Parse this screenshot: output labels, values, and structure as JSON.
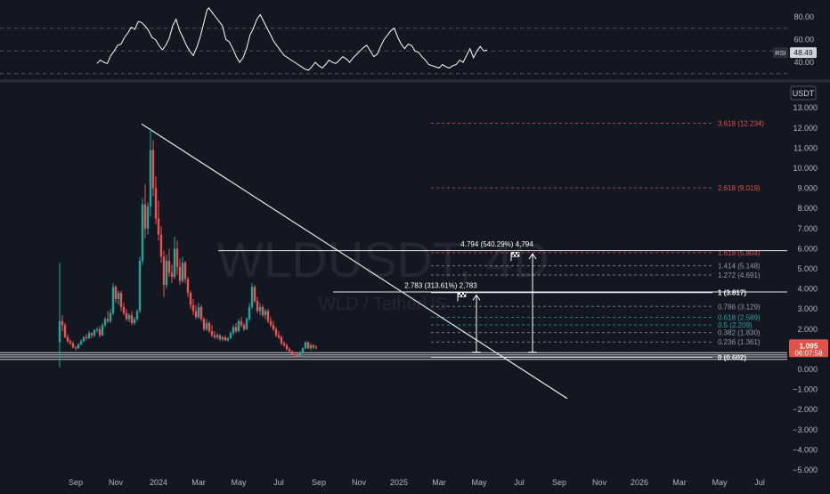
{
  "watermark": {
    "symbol": "WLDUSDT, 4D",
    "subtitle": "WLD / TetherUS"
  },
  "rsi": {
    "label": "RSI",
    "value": "48.49",
    "ticks": [
      {
        "v": 80,
        "label": "80.00"
      },
      {
        "v": 60,
        "label": "60.00"
      },
      {
        "v": 40,
        "label": "40.00"
      }
    ],
    "bands": [
      70,
      50,
      30
    ],
    "series": [
      [
        1,
        39
      ],
      [
        3,
        42
      ],
      [
        5,
        40
      ],
      [
        7,
        39
      ],
      [
        9,
        46
      ],
      [
        11,
        50
      ],
      [
        13,
        55
      ],
      [
        15,
        56
      ],
      [
        17,
        62
      ],
      [
        19,
        66
      ],
      [
        21,
        71
      ],
      [
        23,
        69
      ],
      [
        25,
        76
      ],
      [
        27,
        75
      ],
      [
        29,
        72
      ],
      [
        31,
        68
      ],
      [
        33,
        62
      ],
      [
        35,
        60
      ],
      [
        37,
        55
      ],
      [
        39,
        51
      ],
      [
        41,
        55
      ],
      [
        43,
        61
      ],
      [
        45,
        72
      ],
      [
        47,
        78
      ],
      [
        49,
        68
      ],
      [
        51,
        62
      ],
      [
        53,
        55
      ],
      [
        55,
        50
      ],
      [
        57,
        46
      ],
      [
        59,
        53
      ],
      [
        61,
        62
      ],
      [
        63,
        74
      ],
      [
        65,
        86
      ],
      [
        66,
        88
      ],
      [
        68,
        84
      ],
      [
        70,
        80
      ],
      [
        72,
        76
      ],
      [
        74,
        72
      ],
      [
        76,
        60
      ],
      [
        78,
        58
      ],
      [
        80,
        52
      ],
      [
        82,
        45
      ],
      [
        84,
        40
      ],
      [
        86,
        44
      ],
      [
        88,
        52
      ],
      [
        90,
        64
      ],
      [
        92,
        70
      ],
      [
        94,
        78
      ],
      [
        96,
        82
      ],
      [
        98,
        76
      ],
      [
        100,
        70
      ],
      [
        102,
        64
      ],
      [
        104,
        58
      ],
      [
        106,
        54
      ],
      [
        108,
        50
      ],
      [
        110,
        46
      ],
      [
        112,
        44
      ],
      [
        114,
        42
      ],
      [
        116,
        40
      ],
      [
        118,
        38
      ],
      [
        120,
        36
      ],
      [
        122,
        34
      ],
      [
        124,
        33
      ],
      [
        126,
        36
      ],
      [
        128,
        40
      ],
      [
        130,
        37
      ],
      [
        132,
        35
      ],
      [
        134,
        38
      ],
      [
        136,
        42
      ],
      [
        138,
        40
      ],
      [
        140,
        39
      ],
      [
        142,
        42
      ],
      [
        144,
        45
      ],
      [
        146,
        43
      ],
      [
        148,
        40
      ],
      [
        150,
        44
      ],
      [
        152,
        47
      ],
      [
        154,
        50
      ],
      [
        156,
        53
      ],
      [
        158,
        55
      ],
      [
        160,
        50
      ],
      [
        162,
        45
      ],
      [
        164,
        47
      ],
      [
        166,
        54
      ],
      [
        168,
        60
      ],
      [
        170,
        64
      ],
      [
        172,
        68
      ],
      [
        174,
        70
      ],
      [
        176,
        62
      ],
      [
        178,
        56
      ],
      [
        180,
        52
      ],
      [
        182,
        56
      ],
      [
        184,
        55
      ],
      [
        186,
        50
      ],
      [
        188,
        49
      ],
      [
        190,
        45
      ],
      [
        192,
        42
      ],
      [
        194,
        38
      ],
      [
        196,
        37
      ],
      [
        198,
        36
      ],
      [
        200,
        35
      ],
      [
        202,
        38
      ],
      [
        204,
        36
      ],
      [
        206,
        35
      ],
      [
        208,
        37
      ],
      [
        210,
        38
      ],
      [
        212,
        42
      ],
      [
        214,
        40
      ],
      [
        216,
        46
      ],
      [
        218,
        52
      ],
      [
        219,
        48
      ],
      [
        220,
        44
      ],
      [
        222,
        50
      ],
      [
        224,
        54
      ],
      [
        226,
        50
      ],
      [
        228,
        51
      ]
    ]
  },
  "chart_data": {
    "type": "candlestick",
    "symbol": "WLDUSDT",
    "interval": "4D",
    "currency": "USDT",
    "ylim": [
      -5,
      13
    ],
    "y_ticks": [
      13,
      12,
      11,
      10,
      9,
      8,
      7,
      6,
      5,
      4,
      3,
      2,
      1,
      0,
      -1,
      -2,
      -3,
      -4,
      -5
    ],
    "y_tick_labels": [
      "13.000",
      "12.000",
      "11.000",
      "10.000",
      "9.000",
      "8.000",
      "7.000",
      "6.000",
      "5.000",
      "4.000",
      "3.000",
      "2.000",
      "1.000",
      "0.000",
      "−1.000",
      "−2.000",
      "−3.000",
      "−4.000",
      "−5.000"
    ],
    "x_ticks": [
      {
        "i": 6,
        "label": "Sep"
      },
      {
        "i": 21,
        "label": "Nov"
      },
      {
        "i": 37,
        "label": "2024"
      },
      {
        "i": 52,
        "label": "Mar"
      },
      {
        "i": 67,
        "label": "May"
      },
      {
        "i": 82,
        "label": "Jul"
      },
      {
        "i": 97,
        "label": "Sep"
      },
      {
        "i": 112,
        "label": "Nov"
      },
      {
        "i": 127,
        "label": "2025"
      },
      {
        "i": 142,
        "label": "Mar"
      },
      {
        "i": 157,
        "label": "May"
      },
      {
        "i": 172,
        "label": "Jul"
      },
      {
        "i": 187,
        "label": "Sep"
      },
      {
        "i": 202,
        "label": "Nov"
      },
      {
        "i": 217,
        "label": "2026"
      },
      {
        "i": 232,
        "label": "Mar"
      },
      {
        "i": 247,
        "label": "May"
      },
      {
        "i": 262,
        "label": "Jul"
      }
    ],
    "candles": [
      [
        1.35,
        5.3,
        0.1,
        2.4
      ],
      [
        2.4,
        2.7,
        1.9,
        2.2
      ],
      [
        2.2,
        2.3,
        1.55,
        1.6
      ],
      [
        1.6,
        1.75,
        1.3,
        1.4
      ],
      [
        1.4,
        1.5,
        1.2,
        1.3
      ],
      [
        1.3,
        1.4,
        1.05,
        1.1
      ],
      [
        1.1,
        1.15,
        0.95,
        1.05
      ],
      [
        1.05,
        1.3,
        1.0,
        1.25
      ],
      [
        1.25,
        1.5,
        1.2,
        1.4
      ],
      [
        1.4,
        1.65,
        1.35,
        1.6
      ],
      [
        1.6,
        1.75,
        1.45,
        1.55
      ],
      [
        1.55,
        1.9,
        1.5,
        1.8
      ],
      [
        1.8,
        1.85,
        1.55,
        1.7
      ],
      [
        1.7,
        2.0,
        1.6,
        1.95
      ],
      [
        1.95,
        2.1,
        1.85,
        2.0
      ],
      [
        2.0,
        2.15,
        1.6,
        1.7
      ],
      [
        1.7,
        2.3,
        1.65,
        2.2
      ],
      [
        2.2,
        2.6,
        2.1,
        2.5
      ],
      [
        2.5,
        2.9,
        2.3,
        2.4
      ],
      [
        2.4,
        3.0,
        2.3,
        2.8
      ],
      [
        2.8,
        4.3,
        2.7,
        4.1
      ],
      [
        4.1,
        4.2,
        3.3,
        3.5
      ],
      [
        3.5,
        3.9,
        3.2,
        3.8
      ],
      [
        3.8,
        3.9,
        2.9,
        3.1
      ],
      [
        3.1,
        3.3,
        2.7,
        2.8
      ],
      [
        2.8,
        3.0,
        2.4,
        2.5
      ],
      [
        2.5,
        2.8,
        2.35,
        2.7
      ],
      [
        2.7,
        2.9,
        2.2,
        2.3
      ],
      [
        2.3,
        2.6,
        2.2,
        2.5
      ],
      [
        2.5,
        3.0,
        2.4,
        2.9
      ],
      [
        2.9,
        5.6,
        2.8,
        5.4
      ],
      [
        5.4,
        8.5,
        5.2,
        8.2
      ],
      [
        8.2,
        9.2,
        6.5,
        7.0
      ],
      [
        7.0,
        8.3,
        6.7,
        8.1
      ],
      [
        8.1,
        12.0,
        7.6,
        10.9
      ],
      [
        10.9,
        11.4,
        8.6,
        9.0
      ],
      [
        9.0,
        9.6,
        7.2,
        7.5
      ],
      [
        7.5,
        8.4,
        6.4,
        6.7
      ],
      [
        6.7,
        7.1,
        5.3,
        5.6
      ],
      [
        5.6,
        5.9,
        3.6,
        4.2
      ],
      [
        4.2,
        5.7,
        4.0,
        5.4
      ],
      [
        5.4,
        6.0,
        4.6,
        4.8
      ],
      [
        4.8,
        5.2,
        4.3,
        4.6
      ],
      [
        4.6,
        6.6,
        4.5,
        6.0
      ],
      [
        6.0,
        6.4,
        4.7,
        5.1
      ],
      [
        5.1,
        5.5,
        4.2,
        4.4
      ],
      [
        4.4,
        5.6,
        4.3,
        5.3
      ],
      [
        5.3,
        5.4,
        4.3,
        4.5
      ],
      [
        4.5,
        4.6,
        3.6,
        3.8
      ],
      [
        3.8,
        3.9,
        3.0,
        3.2
      ],
      [
        3.2,
        3.5,
        2.7,
        2.9
      ],
      [
        2.9,
        3.2,
        2.5,
        2.6
      ],
      [
        2.6,
        3.3,
        2.5,
        3.1
      ],
      [
        3.1,
        3.2,
        2.4,
        2.5
      ],
      [
        2.5,
        2.6,
        1.9,
        2.0
      ],
      [
        2.0,
        2.5,
        1.9,
        2.3
      ],
      [
        2.3,
        2.4,
        1.8,
        1.9
      ],
      [
        1.9,
        2.2,
        1.6,
        1.7
      ],
      [
        1.7,
        1.9,
        1.5,
        1.6
      ],
      [
        1.6,
        1.8,
        1.5,
        1.7
      ],
      [
        1.7,
        1.75,
        1.4,
        1.5
      ],
      [
        1.5,
        1.65,
        1.4,
        1.6
      ],
      [
        1.6,
        1.7,
        1.4,
        1.45
      ],
      [
        1.45,
        1.6,
        1.35,
        1.55
      ],
      [
        1.55,
        1.9,
        1.5,
        1.8
      ],
      [
        1.8,
        2.2,
        1.7,
        2.1
      ],
      [
        2.1,
        2.3,
        1.8,
        1.9
      ],
      [
        1.9,
        2.5,
        1.85,
        2.4
      ],
      [
        2.4,
        2.6,
        2.1,
        2.2
      ],
      [
        2.2,
        2.3,
        1.9,
        2.0
      ],
      [
        2.0,
        2.6,
        1.95,
        2.5
      ],
      [
        2.5,
        3.3,
        2.4,
        3.1
      ],
      [
        3.1,
        4.3,
        3.0,
        4.1
      ],
      [
        4.1,
        4.2,
        3.3,
        3.4
      ],
      [
        3.4,
        3.6,
        2.8,
        2.9
      ],
      [
        2.9,
        3.3,
        2.7,
        3.1
      ],
      [
        3.1,
        3.2,
        2.6,
        2.7
      ],
      [
        2.7,
        3.0,
        2.5,
        2.9
      ],
      [
        2.9,
        3.0,
        2.3,
        2.4
      ],
      [
        2.4,
        2.6,
        2.1,
        2.2
      ],
      [
        2.2,
        2.4,
        1.9,
        2.0
      ],
      [
        2.0,
        2.1,
        1.6,
        1.7
      ],
      [
        1.7,
        1.9,
        1.5,
        1.6
      ],
      [
        1.6,
        1.7,
        1.2,
        1.3
      ],
      [
        1.3,
        1.4,
        1.1,
        1.2
      ],
      [
        1.2,
        1.3,
        0.95,
        1.0
      ],
      [
        1.0,
        1.1,
        0.85,
        0.9
      ],
      [
        0.9,
        0.95,
        0.7,
        0.75
      ],
      [
        0.75,
        0.85,
        0.65,
        0.7
      ],
      [
        0.7,
        0.8,
        0.6,
        0.65
      ],
      [
        0.65,
        0.9,
        0.6,
        0.85
      ],
      [
        0.85,
        1.1,
        0.8,
        1.05
      ],
      [
        1.05,
        1.4,
        1.0,
        1.35
      ],
      [
        1.35,
        1.4,
        1.0,
        1.05
      ],
      [
        1.05,
        1.3,
        0.95,
        1.2
      ],
      [
        1.2,
        1.25,
        1.0,
        1.1
      ],
      [
        1.1,
        1.2,
        1.0,
        1.095
      ]
    ],
    "fib_levels": [
      {
        "label": "3.618 (12.234)",
        "value": 12.234,
        "color": "#e0524a"
      },
      {
        "label": "2.618 (9.019)",
        "value": 9.019,
        "color": "#e0524a"
      },
      {
        "label": "1.618 (5.804)",
        "value": 5.804,
        "color": "#e0524a"
      },
      {
        "label": "1.414 (5.148)",
        "value": 5.148,
        "color": "#9598a1"
      },
      {
        "label": "1.272 (4.691)",
        "value": 4.691,
        "color": "#9598a1"
      },
      {
        "label": "1 (3.817)",
        "value": 3.817,
        "color": "#ffffff"
      },
      {
        "label": "0.786 (3.129)",
        "value": 3.129,
        "color": "#9598a1"
      },
      {
        "label": "0.618 (2.589)",
        "value": 2.589,
        "color": "#26a69a"
      },
      {
        "label": "0.5 (2.209)",
        "value": 2.209,
        "color": "#26a69a"
      },
      {
        "label": "0.382 (1.830)",
        "value": 1.83,
        "color": "#9598a1"
      },
      {
        "label": "0.236 (1.361)",
        "value": 1.361,
        "color": "#9598a1"
      },
      {
        "label": "0 (0.602)",
        "value": 0.602,
        "color": "#ffffff"
      }
    ],
    "horizontal_lines": [
      5.9,
      3.85,
      0.83,
      0.72,
      0.62,
      0.5
    ],
    "trendline": {
      "start": {
        "i": 34,
        "v": 12.2
      },
      "end": {
        "i": 165,
        "v": -1.45
      }
    },
    "measures": [
      {
        "label": "2.783 (313.61%) 2,783",
        "from": 0.85,
        "to": 3.7,
        "i": 156
      },
      {
        "label": "4.794 (540.29%) 4,794",
        "from": 0.85,
        "to": 5.75,
        "i": 177
      }
    ],
    "flags": [
      {
        "i": 151,
        "v": 3.65
      },
      {
        "i": 171,
        "v": 5.65
      }
    ],
    "last_price": {
      "value": "1.095",
      "countdown": "06:07:58",
      "color": "#e0524a"
    },
    "colors": {
      "up": "#26a69a",
      "down": "#ef5350",
      "background": "#131722"
    }
  }
}
